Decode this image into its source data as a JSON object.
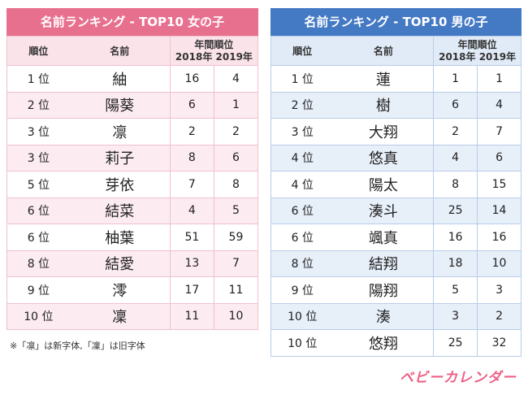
{
  "girls": {
    "title": "名前ランキング - TOP10 女の子",
    "headers": {
      "rank": "順位",
      "name": "名前",
      "year_rank": "年間順位",
      "y2018": "2018年",
      "y2019": "2019年"
    },
    "rows": [
      {
        "rank": "1 位",
        "name": "紬",
        "y2018": "16",
        "y2019": "4"
      },
      {
        "rank": "2 位",
        "name": "陽葵",
        "y2018": "6",
        "y2019": "1"
      },
      {
        "rank": "3 位",
        "name": "凛",
        "y2018": "2",
        "y2019": "2"
      },
      {
        "rank": "3 位",
        "name": "莉子",
        "y2018": "8",
        "y2019": "6"
      },
      {
        "rank": "5 位",
        "name": "芽依",
        "y2018": "7",
        "y2019": "8"
      },
      {
        "rank": "6 位",
        "name": "結菜",
        "y2018": "4",
        "y2019": "5"
      },
      {
        "rank": "6 位",
        "name": "柚葉",
        "y2018": "51",
        "y2019": "59"
      },
      {
        "rank": "8 位",
        "name": "結愛",
        "y2018": "13",
        "y2019": "7"
      },
      {
        "rank": "9 位",
        "name": "澪",
        "y2018": "17",
        "y2019": "11"
      },
      {
        "rank": "10 位",
        "name": "凜",
        "y2018": "11",
        "y2019": "10"
      }
    ]
  },
  "boys": {
    "title": "名前ランキング - TOP10 男の子",
    "headers": {
      "rank": "順位",
      "name": "名前",
      "year_rank": "年間順位",
      "y2018": "2018年",
      "y2019": "2019年"
    },
    "rows": [
      {
        "rank": "1 位",
        "name": "蓮",
        "y2018": "1",
        "y2019": "1"
      },
      {
        "rank": "2 位",
        "name": "樹",
        "y2018": "6",
        "y2019": "4"
      },
      {
        "rank": "3 位",
        "name": "大翔",
        "y2018": "2",
        "y2019": "7"
      },
      {
        "rank": "4 位",
        "name": "悠真",
        "y2018": "4",
        "y2019": "6"
      },
      {
        "rank": "4 位",
        "name": "陽太",
        "y2018": "8",
        "y2019": "15"
      },
      {
        "rank": "6 位",
        "name": "湊斗",
        "y2018": "25",
        "y2019": "14"
      },
      {
        "rank": "6 位",
        "name": "颯真",
        "y2018": "16",
        "y2019": "16"
      },
      {
        "rank": "8 位",
        "name": "結翔",
        "y2018": "18",
        "y2019": "10"
      },
      {
        "rank": "9 位",
        "name": "陽翔",
        "y2018": "5",
        "y2019": "3"
      },
      {
        "rank": "10 位",
        "name": "湊",
        "y2018": "3",
        "y2019": "2"
      },
      {
        "rank": "10 位",
        "name": "悠翔",
        "y2018": "25",
        "y2019": "32"
      }
    ]
  },
  "footnote": "※「凛」は新字体,「凜」は旧字体",
  "logo": "ベビーカレンダー",
  "colors": {
    "girls_accent": "#e8708f",
    "boys_accent": "#4479c4",
    "logo": "#ee5f86"
  }
}
